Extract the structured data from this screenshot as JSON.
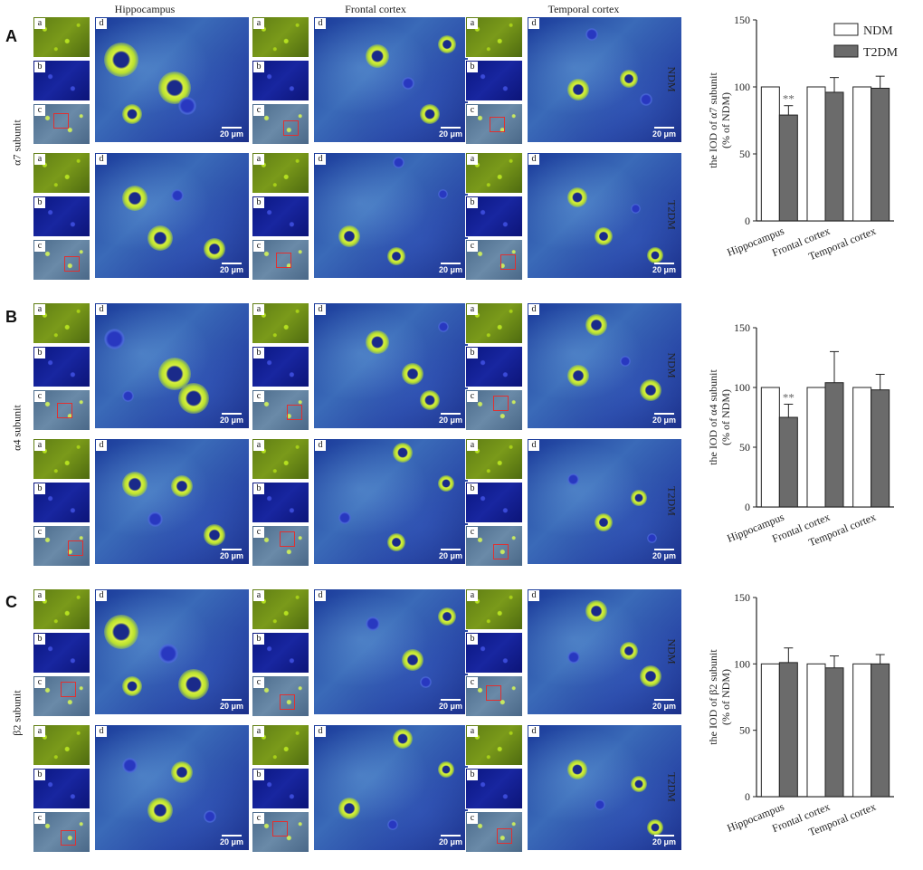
{
  "figure": {
    "panel_letters": [
      "A",
      "B",
      "C"
    ],
    "column_titles": [
      "Hippocampus",
      "Frontal cortex",
      "Temporal cortex"
    ],
    "row_labels": [
      "NDM",
      "T2DM"
    ],
    "subunit_labels": [
      "α7 subunit",
      "α4 subunit",
      "β2 subunit"
    ],
    "thumb_labels": [
      "a",
      "b",
      "c"
    ],
    "main_label": "d",
    "scale_bar": "20 μm"
  },
  "chart_data": [
    {
      "type": "bar",
      "title": "",
      "categories": [
        "Hippocampus",
        "Frontal cortex",
        "Temporal cortex"
      ],
      "series": [
        {
          "name": "NDM",
          "values": [
            100,
            100,
            100
          ],
          "errors": [
            0,
            0,
            0
          ],
          "color": "#ffffff"
        },
        {
          "name": "T2DM",
          "values": [
            79,
            96,
            99
          ],
          "errors": [
            7,
            11,
            9
          ],
          "color": "#6b6b6b"
        }
      ],
      "ylabel": "the IOD of α7 subunit (% of NDM)",
      "ylim": [
        0,
        150
      ],
      "yticks": [
        0,
        50,
        100,
        150
      ],
      "annotations": [
        {
          "category": "Hippocampus",
          "series": "T2DM",
          "text": "**"
        }
      ],
      "legend": "top-right"
    },
    {
      "type": "bar",
      "title": "",
      "categories": [
        "Hippocampus",
        "Frontal cortex",
        "Temporal cortex"
      ],
      "series": [
        {
          "name": "NDM",
          "values": [
            100,
            100,
            100
          ],
          "errors": [
            0,
            0,
            0
          ],
          "color": "#ffffff"
        },
        {
          "name": "T2DM",
          "values": [
            75,
            104,
            98
          ],
          "errors": [
            11,
            26,
            13
          ],
          "color": "#6b6b6b"
        }
      ],
      "ylabel": "the IOD of α4 subunit (% of NDM)",
      "ylim": [
        0,
        150
      ],
      "yticks": [
        0,
        50,
        100,
        150
      ],
      "annotations": [
        {
          "category": "Hippocampus",
          "series": "T2DM",
          "text": "**"
        }
      ],
      "legend": ""
    },
    {
      "type": "bar",
      "title": "",
      "categories": [
        "Hippocampus",
        "Frontal cortex",
        "Temporal cortex"
      ],
      "series": [
        {
          "name": "NDM",
          "values": [
            100,
            100,
            100
          ],
          "errors": [
            0,
            0,
            0
          ],
          "color": "#ffffff"
        },
        {
          "name": "T2DM",
          "values": [
            101,
            97,
            100
          ],
          "errors": [
            11,
            9,
            7
          ],
          "color": "#6b6b6b"
        }
      ],
      "ylabel": "the IOD of β2 subunit (% of NDM)",
      "ylim": [
        0,
        150
      ],
      "yticks": [
        0,
        50,
        100,
        150
      ],
      "annotations": [],
      "legend": ""
    }
  ]
}
